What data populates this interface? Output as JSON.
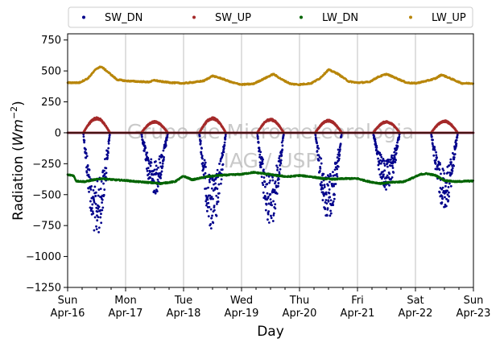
{
  "chart_data": {
    "type": "scatter",
    "xlabel": "Day",
    "ylabel": "Radiation (Wm⁻²)",
    "ylabel_parts": {
      "main": "Radiation (",
      "italic": "Wm",
      "sup": "−2",
      "close": ")"
    },
    "ylim": [
      -1250,
      800
    ],
    "xlim_days": [
      0,
      7
    ],
    "yticks": [
      750,
      500,
      250,
      0,
      -250,
      -500,
      -750,
      -1000,
      -1250
    ],
    "ytick_labels": [
      "750",
      "500",
      "250",
      "0",
      "−250",
      "−500",
      "−750",
      "−1000",
      "−1250"
    ],
    "xticks": [
      {
        "day": 0,
        "line1": "Sun",
        "line2": "Apr-16"
      },
      {
        "day": 1,
        "line1": "Mon",
        "line2": "Apr-17"
      },
      {
        "day": 2,
        "line1": "Tue",
        "line2": "Apr-18"
      },
      {
        "day": 3,
        "line1": "Wed",
        "line2": "Apr-19"
      },
      {
        "day": 4,
        "line1": "Thu",
        "line2": "Apr-20"
      },
      {
        "day": 5,
        "line1": "Fri",
        "line2": "Apr-21"
      },
      {
        "day": 6,
        "line1": "Sat",
        "line2": "Apr-22"
      },
      {
        "day": 7,
        "line1": "Sun",
        "line2": "Apr-23"
      }
    ],
    "grid": "x-only",
    "zero_line": true,
    "legend_position": "top-outside",
    "watermark": [
      "Grupo de Micrometeorologia",
      "IAG / USP"
    ],
    "series": [
      {
        "name": "SW_DN",
        "color": "#00008b",
        "night_value": 0,
        "daily_peaks": [
          -850,
          -500,
          -790,
          -760,
          -710,
          -490,
          -620
        ]
      },
      {
        "name": "SW_UP",
        "color": "#a52a2a",
        "night_value": 0,
        "daily_peaks": [
          125,
          95,
          125,
          115,
          105,
          95,
          100
        ]
      },
      {
        "name": "LW_DN",
        "color": "#006400",
        "points": [
          [
            0.0,
            -340
          ],
          [
            0.1,
            -345
          ],
          [
            0.15,
            -390
          ],
          [
            0.3,
            -395
          ],
          [
            0.45,
            -380
          ],
          [
            0.6,
            -370
          ],
          [
            0.8,
            -380
          ],
          [
            1.0,
            -385
          ],
          [
            1.2,
            -395
          ],
          [
            1.35,
            -400
          ],
          [
            1.6,
            -410
          ],
          [
            1.85,
            -395
          ],
          [
            2.0,
            -350
          ],
          [
            2.15,
            -380
          ],
          [
            2.4,
            -355
          ],
          [
            2.6,
            -345
          ],
          [
            2.8,
            -340
          ],
          [
            3.0,
            -335
          ],
          [
            3.2,
            -320
          ],
          [
            3.4,
            -330
          ],
          [
            3.6,
            -345
          ],
          [
            3.8,
            -355
          ],
          [
            4.0,
            -345
          ],
          [
            4.2,
            -355
          ],
          [
            4.4,
            -370
          ],
          [
            4.6,
            -375
          ],
          [
            4.8,
            -370
          ],
          [
            5.0,
            -370
          ],
          [
            5.2,
            -395
          ],
          [
            5.4,
            -410
          ],
          [
            5.6,
            -400
          ],
          [
            5.8,
            -395
          ],
          [
            6.0,
            -355
          ],
          [
            6.1,
            -335
          ],
          [
            6.2,
            -330
          ],
          [
            6.35,
            -345
          ],
          [
            6.5,
            -385
          ],
          [
            6.7,
            -395
          ],
          [
            6.9,
            -390
          ],
          [
            7.0,
            -390
          ]
        ]
      },
      {
        "name": "LW_UP",
        "color": "#b8860b",
        "points": [
          [
            0.0,
            405
          ],
          [
            0.2,
            405
          ],
          [
            0.35,
            440
          ],
          [
            0.5,
            520
          ],
          [
            0.58,
            535
          ],
          [
            0.7,
            490
          ],
          [
            0.85,
            430
          ],
          [
            1.0,
            420
          ],
          [
            1.2,
            415
          ],
          [
            1.4,
            410
          ],
          [
            1.5,
            425
          ],
          [
            1.6,
            415
          ],
          [
            1.8,
            405
          ],
          [
            2.0,
            400
          ],
          [
            2.2,
            410
          ],
          [
            2.35,
            420
          ],
          [
            2.5,
            460
          ],
          [
            2.65,
            440
          ],
          [
            2.85,
            405
          ],
          [
            3.0,
            390
          ],
          [
            3.2,
            395
          ],
          [
            3.4,
            440
          ],
          [
            3.55,
            475
          ],
          [
            3.7,
            430
          ],
          [
            3.85,
            395
          ],
          [
            4.0,
            390
          ],
          [
            4.2,
            400
          ],
          [
            4.35,
            440
          ],
          [
            4.5,
            510
          ],
          [
            4.65,
            480
          ],
          [
            4.85,
            415
          ],
          [
            5.0,
            405
          ],
          [
            5.2,
            410
          ],
          [
            5.35,
            450
          ],
          [
            5.5,
            475
          ],
          [
            5.65,
            445
          ],
          [
            5.85,
            405
          ],
          [
            6.0,
            400
          ],
          [
            6.2,
            420
          ],
          [
            6.35,
            440
          ],
          [
            6.45,
            470
          ],
          [
            6.6,
            440
          ],
          [
            6.8,
            400
          ],
          [
            7.0,
            400
          ]
        ]
      }
    ]
  }
}
